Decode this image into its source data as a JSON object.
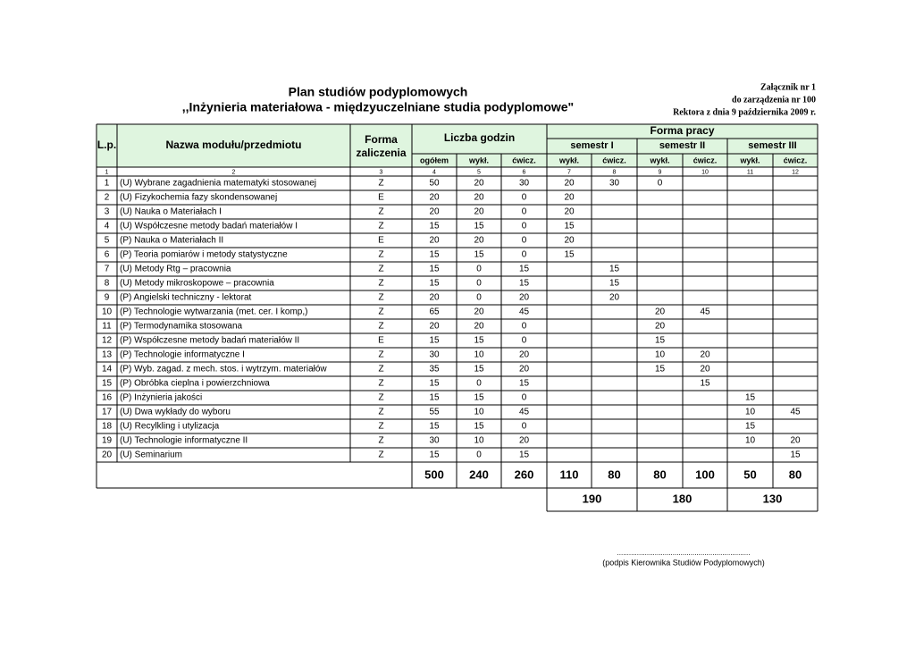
{
  "title": {
    "line1": "Plan studiów podyplomowych",
    "line2": ",,Inżynieria materiałowa - międzyuczelniane studia podyplomowe\""
  },
  "annex": {
    "line1": "Załącznik nr 1",
    "line2": "do zarządzenia nr 100",
    "line3": "Rektora z dnia 9 października 2009 r."
  },
  "table": {
    "headers": {
      "lp": "L.p.",
      "name": "Nazwa modułu/przedmiotu",
      "form": [
        "Forma",
        "zaliczenia"
      ],
      "hours": "Liczba godzin",
      "work_form": "Forma pracy",
      "semesters": [
        "semestr I",
        "semestr II",
        "semestr III"
      ],
      "sub": [
        "ogółem",
        "wykł.",
        "ćwicz.",
        "wykł.",
        "ćwicz.",
        "wykł.",
        "ćwicz.",
        "wykł.",
        "ćwicz."
      ]
    },
    "column_numbers": [
      1,
      2,
      3,
      4,
      5,
      6,
      7,
      8,
      9,
      10,
      11,
      12
    ],
    "rows": [
      [
        1,
        "(U) Wybrane zagadnienia matematyki stosowanej",
        "Z",
        50,
        20,
        30,
        20,
        30,
        0,
        null,
        null,
        null
      ],
      [
        2,
        "(U) Fizykochemia fazy skondensowanej",
        "E",
        20,
        20,
        0,
        20,
        null,
        null,
        null,
        null,
        null
      ],
      [
        3,
        "(U) Nauka o Materiałach I",
        "Z",
        20,
        20,
        0,
        20,
        null,
        null,
        null,
        null,
        null
      ],
      [
        4,
        "(U) Współczesne metody badań materiałów I",
        "Z",
        15,
        15,
        0,
        15,
        null,
        null,
        null,
        null,
        null
      ],
      [
        5,
        "(P) Nauka o Materiałach II",
        "E",
        20,
        20,
        0,
        20,
        null,
        null,
        null,
        null,
        null
      ],
      [
        6,
        "(P) Teoria pomiarów i metody statystyczne",
        "Z",
        15,
        15,
        0,
        15,
        null,
        null,
        null,
        null,
        null
      ],
      [
        7,
        "(U) Metody Rtg – pracownia",
        "Z",
        15,
        0,
        15,
        null,
        15,
        null,
        null,
        null,
        null
      ],
      [
        8,
        "(U) Metody mikroskopowe – pracownia",
        "Z",
        15,
        0,
        15,
        null,
        15,
        null,
        null,
        null,
        null
      ],
      [
        9,
        "(P) Angielski techniczny - lektorat",
        "Z",
        20,
        0,
        20,
        null,
        20,
        null,
        null,
        null,
        null
      ],
      [
        10,
        "(P) Technologie wytwarzania (met. cer. I komp,)",
        "Z",
        65,
        20,
        45,
        null,
        null,
        20,
        45,
        null,
        null
      ],
      [
        11,
        "(P) Termodynamika stosowana",
        "Z",
        20,
        20,
        0,
        null,
        null,
        20,
        null,
        null,
        null
      ],
      [
        12,
        "(P) Współczesne metody badań materiałów II",
        "E",
        15,
        15,
        0,
        null,
        null,
        15,
        null,
        null,
        null
      ],
      [
        13,
        "(P) Technologie informatyczne I",
        "Z",
        30,
        10,
        20,
        null,
        null,
        10,
        20,
        null,
        null
      ],
      [
        14,
        "(P) Wyb. zagad. z mech. stos. i wytrzym. materiałów",
        "Z",
        35,
        15,
        20,
        null,
        null,
        15,
        20,
        null,
        null
      ],
      [
        15,
        "(P) Obróbka cieplna i powierzchniowa",
        "Z",
        15,
        0,
        15,
        null,
        null,
        null,
        15,
        null,
        null
      ],
      [
        16,
        "(P) Inżynieria jakości",
        "Z",
        15,
        15,
        0,
        null,
        null,
        null,
        null,
        15,
        null
      ],
      [
        17,
        "(U) Dwa wykłady do wyboru",
        "Z",
        55,
        10,
        45,
        null,
        null,
        null,
        null,
        10,
        45
      ],
      [
        18,
        "(U) Recylkling i utylizacja",
        "Z",
        15,
        15,
        0,
        null,
        null,
        null,
        null,
        15,
        null
      ],
      [
        19,
        "(U) Technologie informatyczne II",
        "Z",
        30,
        10,
        20,
        null,
        null,
        null,
        null,
        10,
        20
      ],
      [
        20,
        "(U) Seminarium",
        "Z",
        15,
        0,
        15,
        null,
        null,
        null,
        null,
        null,
        15
      ]
    ],
    "totals": [
      500,
      240,
      260,
      110,
      80,
      80,
      100,
      50,
      80
    ],
    "semester_totals": [
      190,
      180,
      130
    ]
  },
  "signature": {
    "line": "...................................................................",
    "caption": "(podpis Kierownika Studiów Podyplomowych)"
  }
}
